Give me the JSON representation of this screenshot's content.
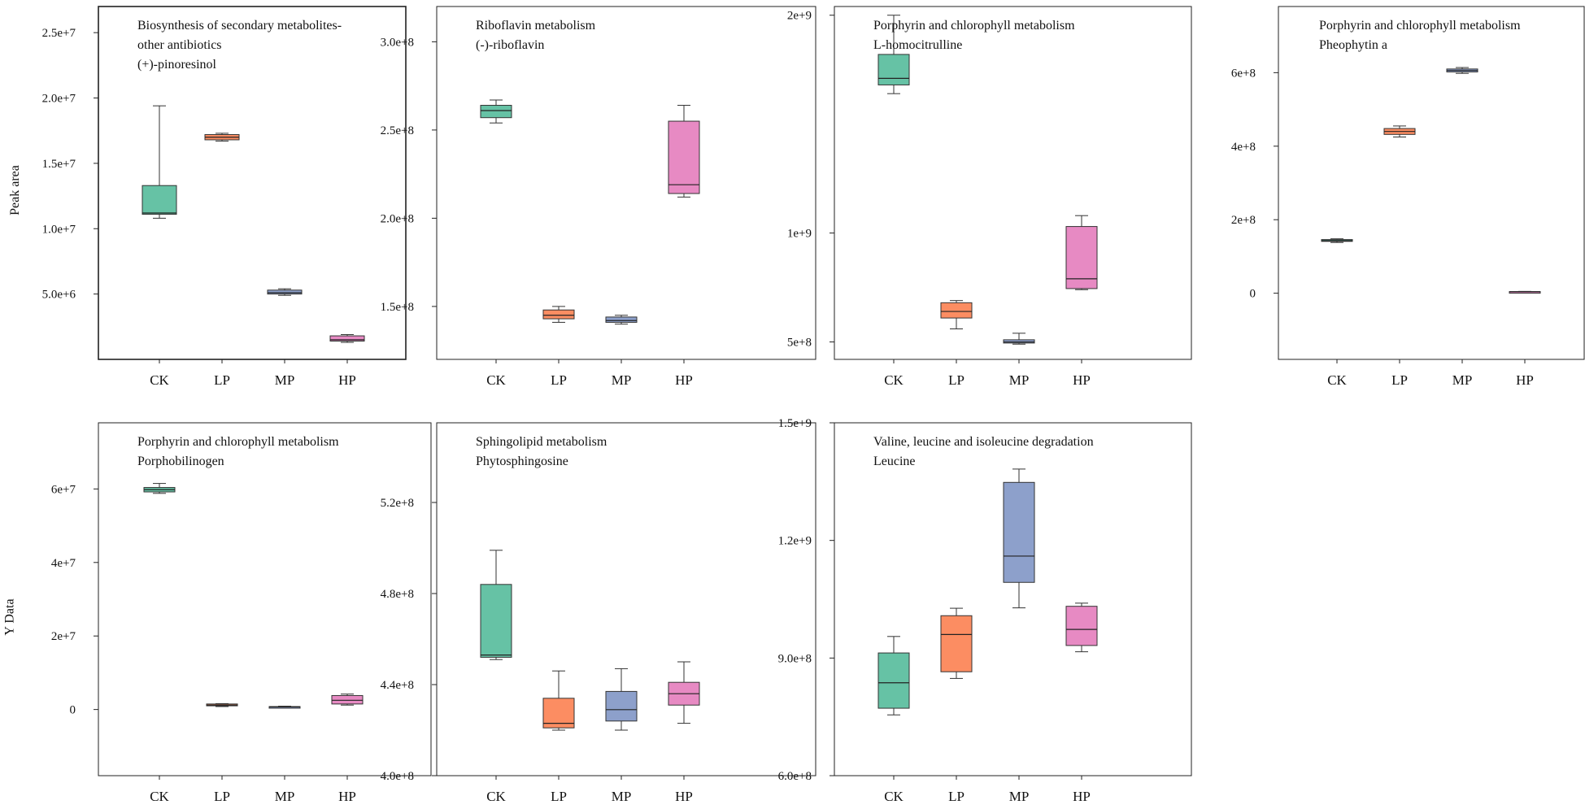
{
  "y_axis_titles": {
    "top": "Peak area",
    "bottom": "Y Data"
  },
  "colors": {
    "CK": "#66c2a5",
    "LP": "#fc8d62",
    "MP": "#8da0cb",
    "HP": "#e78ac3"
  },
  "chart_data": [
    {
      "type": "box",
      "title_lines": [
        "Biosynthesis of secondary metabolites-",
        "other antibiotics",
        "(+)-pinoresinol"
      ],
      "categories": [
        "CK",
        "LP",
        "MP",
        "HP"
      ],
      "ylim": [
        0,
        27000000
      ],
      "yticks": [
        5000000,
        10000000,
        15000000,
        20000000,
        25000000
      ],
      "yticklabels": [
        "5.0e+6",
        "1.0e+7",
        "1.5e+7",
        "2.0e+7",
        "2.5e+7"
      ],
      "boxes": [
        {
          "min": 10800000,
          "q1": 11100000,
          "median": 11200000,
          "q3": 13300000,
          "max": 19400000
        },
        {
          "min": 16700000,
          "q1": 16800000,
          "median": 17000000,
          "q3": 17200000,
          "max": 17300000
        },
        {
          "min": 4900000,
          "q1": 5000000,
          "median": 5100000,
          "q3": 5300000,
          "max": 5400000
        },
        {
          "min": 1300000,
          "q1": 1400000,
          "median": 1500000,
          "q3": 1800000,
          "max": 1900000
        }
      ]
    },
    {
      "type": "box",
      "title_lines": [
        "Riboflavin metabolism",
        "(-)-riboflavin"
      ],
      "categories": [
        "CK",
        "LP",
        "MP",
        "HP"
      ],
      "ylim": [
        120000000,
        320000000
      ],
      "yticks": [
        150000000,
        200000000,
        250000000,
        300000000
      ],
      "yticklabels": [
        "1.5e+8",
        "2.0e+8",
        "2.5e+8",
        "3.0e+8"
      ],
      "boxes": [
        {
          "min": 254000000,
          "q1": 257000000,
          "median": 261000000,
          "q3": 264000000,
          "max": 267000000
        },
        {
          "min": 141000000,
          "q1": 143000000,
          "median": 145000000,
          "q3": 148000000,
          "max": 150000000
        },
        {
          "min": 140000000,
          "q1": 141000000,
          "median": 142000000,
          "q3": 144000000,
          "max": 145000000
        },
        {
          "min": 212000000,
          "q1": 214000000,
          "median": 219000000,
          "q3": 255000000,
          "max": 264000000
        }
      ]
    },
    {
      "type": "box",
      "title_lines": [
        "Porphyrin and chlorophyll metabolism",
        "L-homocitrulline"
      ],
      "categories": [
        "CK",
        "LP",
        "MP",
        "HP"
      ],
      "ylim": [
        420000000,
        2040000000
      ],
      "yticks": [
        500000000,
        1000000000,
        2000000000
      ],
      "yticklabels": [
        "5e+8",
        "1e+9",
        "2e+9"
      ],
      "boxes": [
        {
          "min": 1640000000,
          "q1": 1680000000,
          "median": 1710000000,
          "q3": 1820000000,
          "max": 2000000000
        },
        {
          "min": 560000000,
          "q1": 610000000,
          "median": 640000000,
          "q3": 680000000,
          "max": 690000000
        },
        {
          "min": 490000000,
          "q1": 495000000,
          "median": 500000000,
          "q3": 510000000,
          "max": 540000000
        },
        {
          "min": 740000000,
          "q1": 745000000,
          "median": 790000000,
          "q3": 1030000000,
          "max": 1080000000
        }
      ]
    },
    {
      "type": "box",
      "title_lines": [
        "Porphyrin and chlorophyll metabolism",
        "Pheophytin a"
      ],
      "categories": [
        "CK",
        "LP",
        "MP",
        "HP"
      ],
      "ylim": [
        -180000000,
        780000000
      ],
      "yticks": [
        0,
        200000000,
        400000000,
        600000000
      ],
      "yticklabels": [
        "0",
        "2e+8",
        "4e+8",
        "6e+8"
      ],
      "boxes": [
        {
          "min": 138000000,
          "q1": 141000000,
          "median": 143000000,
          "q3": 146000000,
          "max": 148000000
        },
        {
          "min": 425000000,
          "q1": 432000000,
          "median": 440000000,
          "q3": 448000000,
          "max": 455000000
        },
        {
          "min": 598000000,
          "q1": 602000000,
          "median": 606000000,
          "q3": 610000000,
          "max": 614000000
        },
        {
          "min": 3000000,
          "q1": 3500000,
          "median": 4000000,
          "q3": 4500000,
          "max": 5000000
        }
      ]
    },
    {
      "type": "box",
      "title_lines": [
        "Porphyrin and chlorophyll metabolism",
        "Porphobilinogen"
      ],
      "categories": [
        "CK",
        "LP",
        "MP",
        "HP"
      ],
      "ylim": [
        -18000000,
        78000000
      ],
      "yticks": [
        0,
        20000000,
        40000000,
        60000000
      ],
      "yticklabels": [
        "0",
        "2e+7",
        "4e+7",
        "6e+7"
      ],
      "boxes": [
        {
          "min": 58800000,
          "q1": 59200000,
          "median": 59800000,
          "q3": 60400000,
          "max": 61500000
        },
        {
          "min": 800000,
          "q1": 1000000,
          "median": 1200000,
          "q3": 1500000,
          "max": 1600000
        },
        {
          "min": 500000,
          "q1": 600000,
          "median": 700000,
          "q3": 800000,
          "max": 900000
        },
        {
          "min": 1200000,
          "q1": 1500000,
          "median": 2500000,
          "q3": 3800000,
          "max": 4200000
        }
      ]
    },
    {
      "type": "box",
      "title_lines": [
        "Sphingolipid metabolism",
        "Phytosphingosine"
      ],
      "categories": [
        "CK",
        "LP",
        "MP",
        "HP"
      ],
      "ylim": [
        400000000,
        555000000
      ],
      "yticks": [
        400000000,
        440000000,
        480000000,
        520000000
      ],
      "yticklabels": [
        "4.0e+8",
        "4.4e+8",
        "4.8e+8",
        "5.2e+8"
      ],
      "boxes": [
        {
          "min": 451000000,
          "q1": 452000000,
          "median": 453000000,
          "q3": 484000000,
          "max": 499000000
        },
        {
          "min": 420000000,
          "q1": 421000000,
          "median": 423000000,
          "q3": 434000000,
          "max": 446000000
        },
        {
          "min": 420000000,
          "q1": 424000000,
          "median": 429000000,
          "q3": 437000000,
          "max": 447000000
        },
        {
          "min": 423000000,
          "q1": 431000000,
          "median": 436000000,
          "q3": 441000000,
          "max": 450000000
        }
      ]
    },
    {
      "type": "box",
      "title_lines": [
        "Valine, leucine and isoleucine degradation",
        "Leucine"
      ],
      "categories": [
        "CK",
        "LP",
        "MP",
        "HP"
      ],
      "ylim": [
        600000000,
        1500000000
      ],
      "yticks": [
        600000000,
        900000000,
        1200000000,
        1500000000
      ],
      "yticklabels": [
        "6.0e+8",
        "9.0e+8",
        "1.2e+9",
        "1.5e+9"
      ],
      "boxes": [
        {
          "min": 755000000,
          "q1": 772000000,
          "median": 837000000,
          "q3": 913000000,
          "max": 955000000
        },
        {
          "min": 848000000,
          "q1": 865000000,
          "median": 960000000,
          "q3": 1008000000,
          "max": 1027000000
        },
        {
          "min": 1028000000,
          "q1": 1093000000,
          "median": 1160000000,
          "q3": 1348000000,
          "max": 1382000000
        },
        {
          "min": 916000000,
          "q1": 932000000,
          "median": 973000000,
          "q3": 1032000000,
          "max": 1040000000
        }
      ]
    }
  ]
}
